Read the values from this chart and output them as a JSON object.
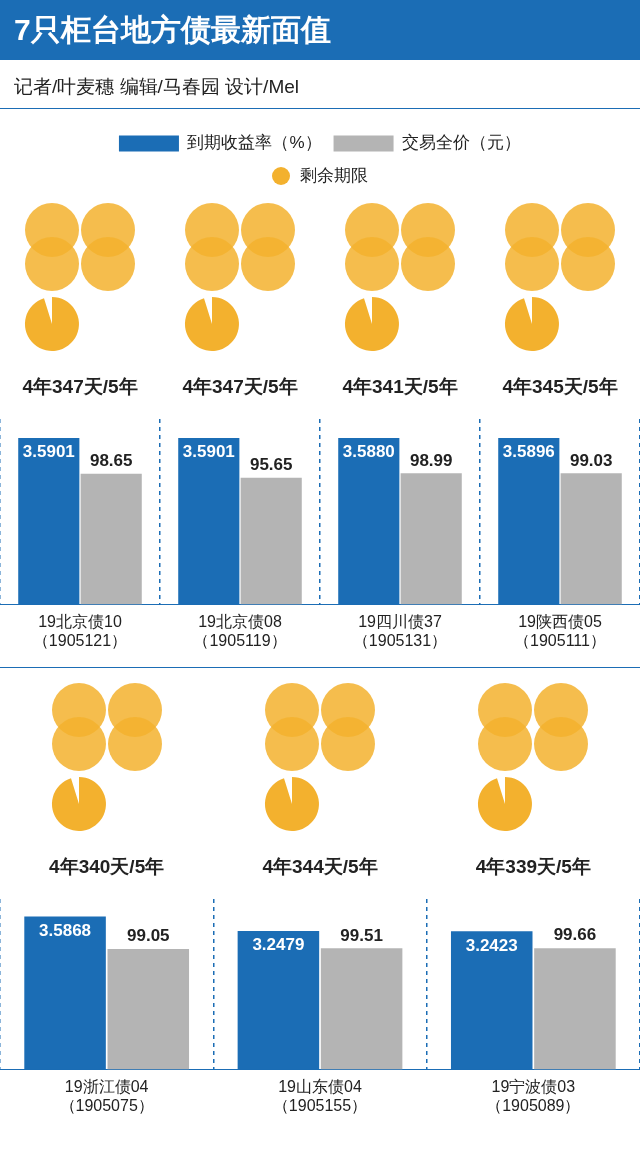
{
  "chart_data": [
    {
      "type": "bar",
      "title": "7只柜台地方债最新面值",
      "subtitle": "记者/叶麦穗  编辑/马春园  设计/Mel",
      "legend": "top",
      "grid": "x",
      "tick_labels": "x",
      "categories": [
        "19北京债10\n（1905121）",
        "19北京债08\n（1905119）",
        "19四川债37\n（1905131）",
        "19陕西债05\n（1905111）"
      ],
      "series": [
        {
          "name": "到期收益率（%）",
          "color": "#1b6db5",
          "values": [
            3.5901,
            3.5901,
            3.588,
            3.5896
          ],
          "value_labels": [
            "3.5901",
            "3.5901",
            "3.5880",
            "3.5896"
          ]
        },
        {
          "name": "交易全价（元）",
          "color": "#b4b4b4",
          "axis": "y2",
          "values": [
            98.65,
            95.65,
            98.99,
            99.03
          ],
          "value_labels": [
            "98.65",
            "95.65",
            "98.99",
            "99.03"
          ]
        }
      ],
      "annotations": [
        "剩余期限",
        "4年347天/5年",
        "4年347天/5年",
        "4年341天/5年",
        "4年345天/5年"
      ]
    },
    {
      "type": "bar",
      "grid": "x",
      "tick_labels": "x",
      "categories": [
        "19浙江债04\n（1905075）",
        "19山东债04\n（1905155）",
        "19宁波债03\n（1905089）"
      ],
      "series": [
        {
          "color": "#1b6db5",
          "values": [
            3.5868,
            3.2479,
            3.2423
          ],
          "value_labels": [
            "3.5868",
            "3.2479",
            "3.2423"
          ]
        },
        {
          "color": "#b4b4b4",
          "axis": "y2",
          "values": [
            99.05,
            99.51,
            99.66
          ],
          "value_labels": [
            "99.05",
            "99.51",
            "99.66"
          ]
        }
      ],
      "annotations": [
        "4年340天/5年",
        "4年344天/5年",
        "4年339天/5年"
      ]
    }
  ]
}
